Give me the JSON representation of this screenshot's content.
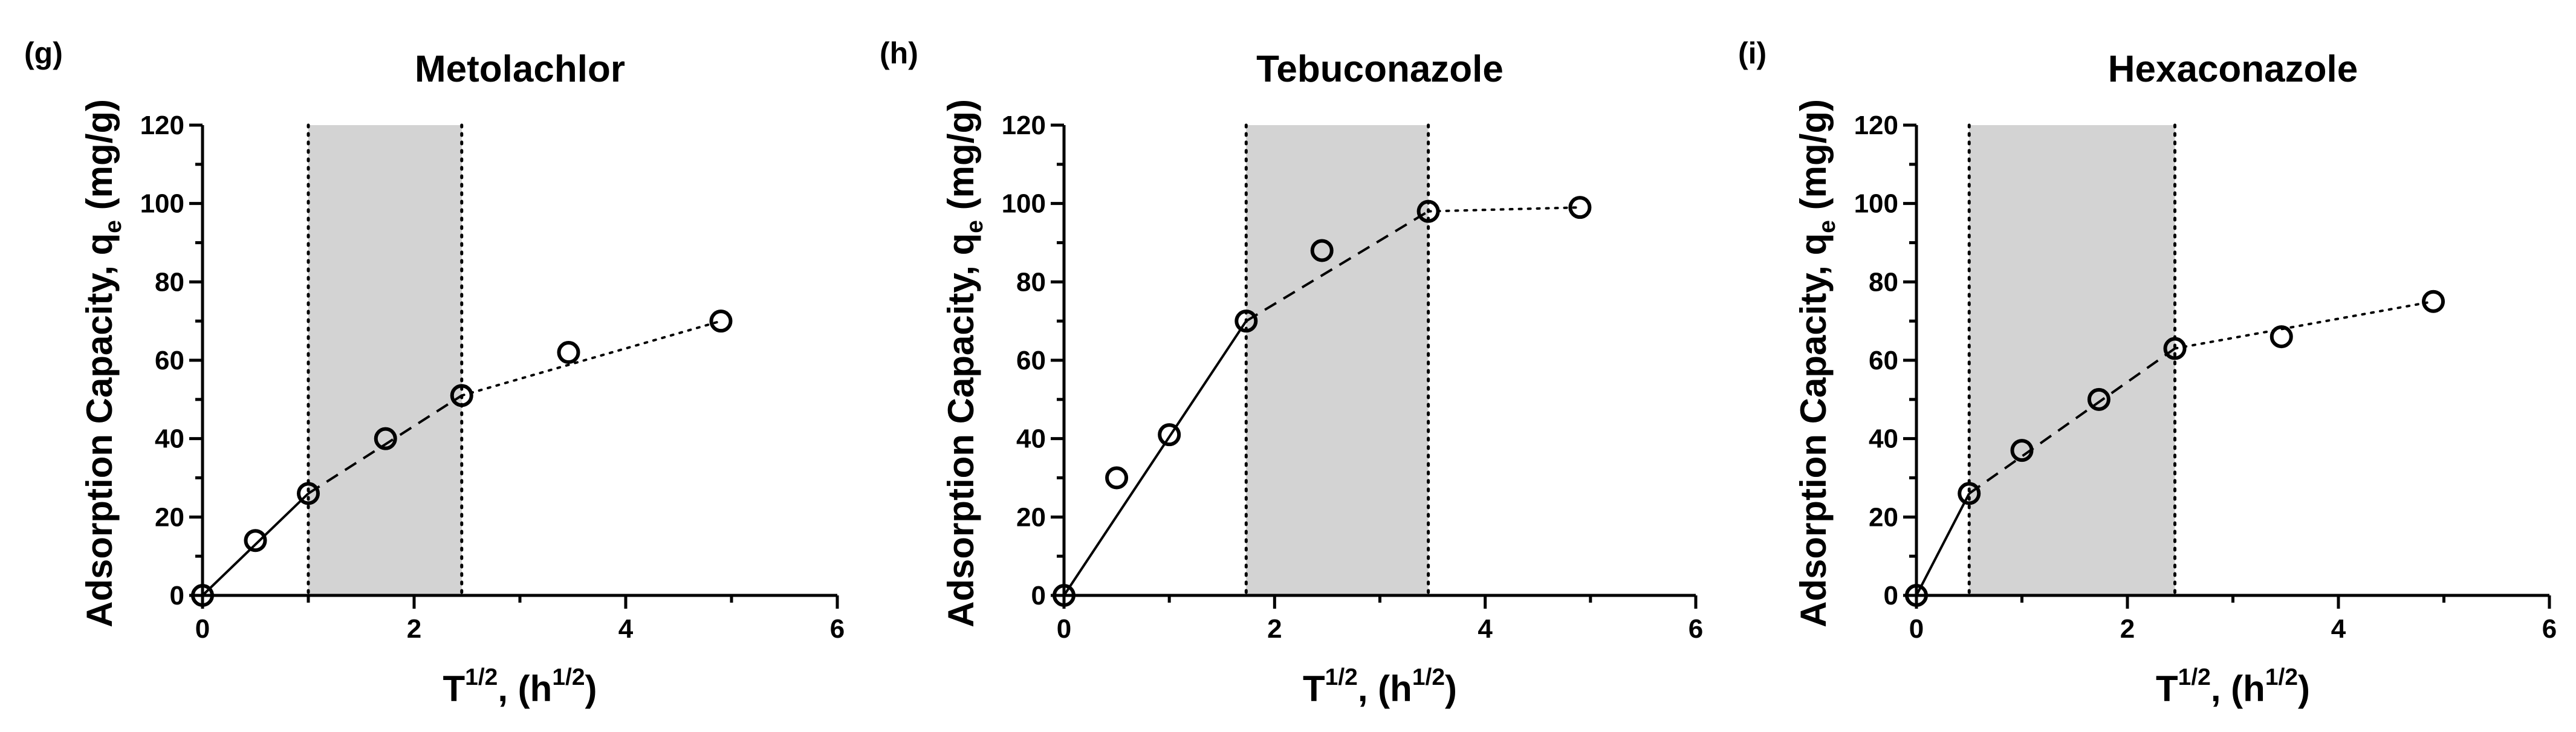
{
  "chart_data": [
    {
      "type": "scatter",
      "panel": "(g)",
      "title": "Metolachlor",
      "xlabel": "T^{1/2}, (h^{1/2})",
      "ylabel": "Adsorption Capacity, q_e (mg/g)",
      "xlim": [
        0,
        6
      ],
      "ylim": [
        0,
        120
      ],
      "xticks": [
        0,
        2,
        4,
        6
      ],
      "yticks": [
        0,
        20,
        40,
        60,
        80,
        100,
        120
      ],
      "grid": false,
      "points": {
        "x": [
          0,
          0.5,
          1.0,
          1.73,
          2.45,
          3.46,
          4.9
        ],
        "y": [
          0,
          14,
          26,
          40,
          51,
          62,
          70
        ]
      },
      "shaded_region": [
        1.0,
        2.45
      ],
      "segments": [
        {
          "style": "solid",
          "x": [
            0,
            1.0
          ],
          "y": [
            0,
            26
          ]
        },
        {
          "style": "dashed",
          "x": [
            1.0,
            2.45
          ],
          "y": [
            26,
            51
          ]
        },
        {
          "style": "dotted",
          "x": [
            2.45,
            4.9
          ],
          "y": [
            51,
            70
          ]
        }
      ]
    },
    {
      "type": "scatter",
      "panel": "(h)",
      "title": "Tebuconazole",
      "xlabel": "T^{1/2}, (h^{1/2})",
      "ylabel": "Adsorption Capacity, q_e (mg/g)",
      "xlim": [
        0,
        6
      ],
      "ylim": [
        0,
        120
      ],
      "xticks": [
        0,
        2,
        4,
        6
      ],
      "yticks": [
        0,
        20,
        40,
        60,
        80,
        100,
        120
      ],
      "grid": false,
      "points": {
        "x": [
          0,
          0.5,
          1.0,
          1.73,
          2.45,
          3.46,
          4.9
        ],
        "y": [
          0,
          30,
          41,
          70,
          88,
          98,
          99
        ]
      },
      "shaded_region": [
        1.73,
        3.46
      ],
      "segments": [
        {
          "style": "solid",
          "x": [
            0,
            1.73
          ],
          "y": [
            0,
            70
          ]
        },
        {
          "style": "dashed",
          "x": [
            1.73,
            3.46
          ],
          "y": [
            70,
            98
          ]
        },
        {
          "style": "dotted",
          "x": [
            3.46,
            4.9
          ],
          "y": [
            98,
            99
          ]
        }
      ]
    },
    {
      "type": "scatter",
      "panel": "(i)",
      "title": "Hexaconazole",
      "xlabel": "T^{1/2}, (h^{1/2})",
      "ylabel": "Adsorption Capacity, q_e (mg/g)",
      "xlim": [
        0,
        6
      ],
      "ylim": [
        0,
        120
      ],
      "xticks": [
        0,
        2,
        4,
        6
      ],
      "yticks": [
        0,
        20,
        40,
        60,
        80,
        100,
        120
      ],
      "grid": false,
      "points": {
        "x": [
          0,
          0.5,
          1.0,
          1.73,
          2.45,
          3.46,
          4.9
        ],
        "y": [
          0,
          26,
          37,
          50,
          63,
          66,
          75
        ]
      },
      "shaded_region": [
        0.5,
        2.45
      ],
      "segments": [
        {
          "style": "solid",
          "x": [
            0,
            0.5
          ],
          "y": [
            0,
            26
          ]
        },
        {
          "style": "dashed",
          "x": [
            0.5,
            2.45
          ],
          "y": [
            26,
            63
          ]
        },
        {
          "style": "dotted",
          "x": [
            2.45,
            4.9
          ],
          "y": [
            63,
            75
          ]
        }
      ]
    }
  ]
}
